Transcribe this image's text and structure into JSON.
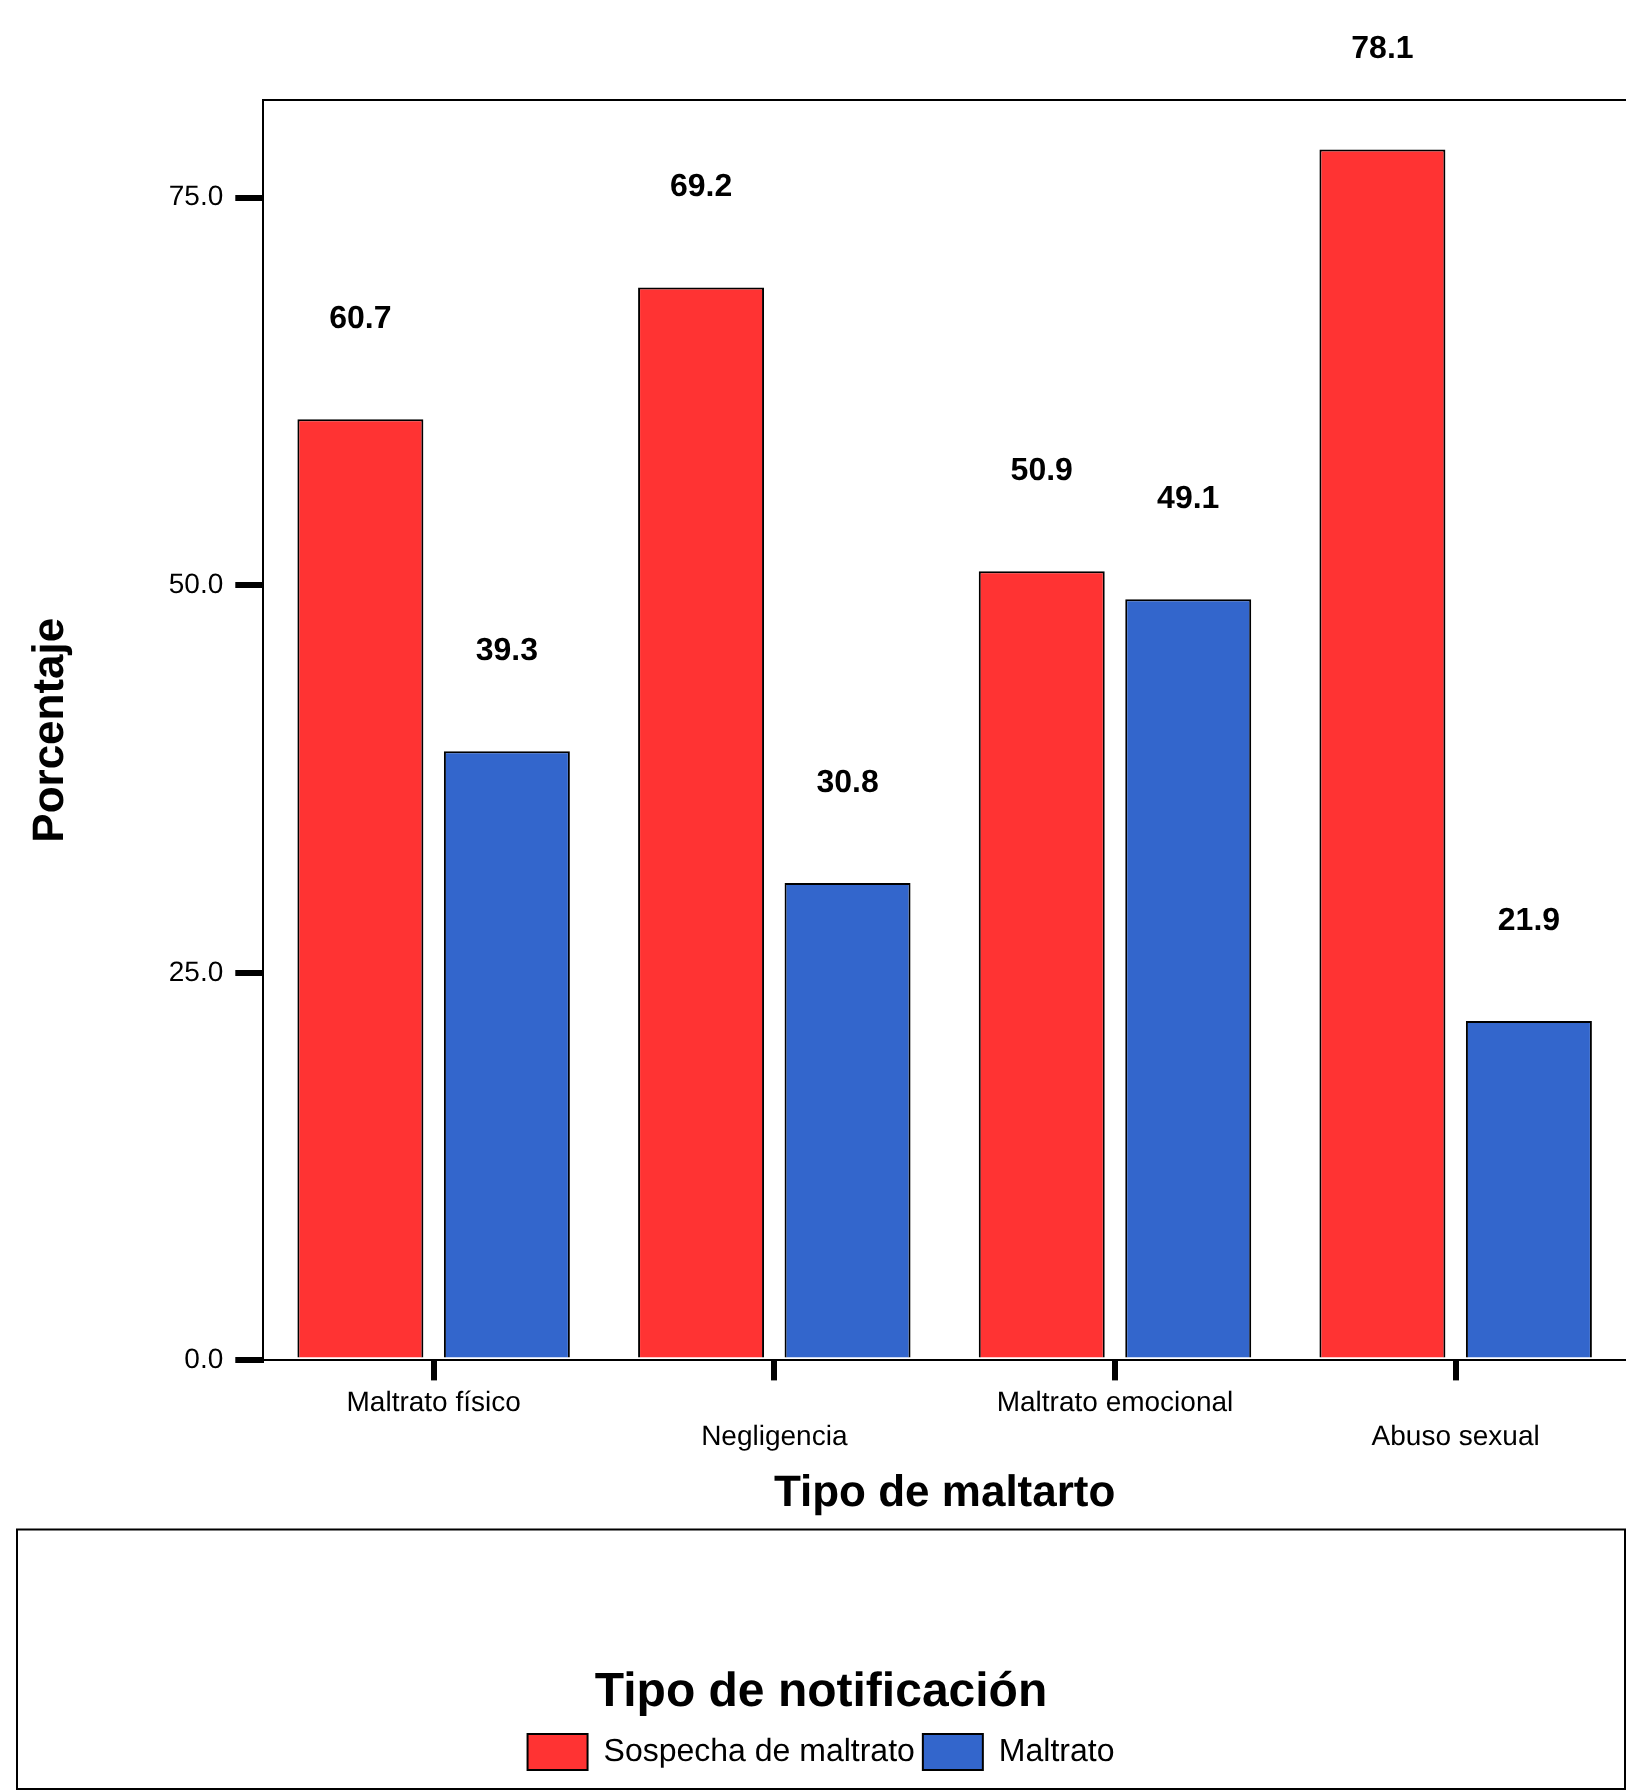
{
  "chart_data": {
    "type": "bar",
    "xlabel": "Tipo de maltarto",
    "ylabel": "Porcentaje",
    "legend_title": "Tipo de notificación",
    "categories": [
      "Maltrato físico",
      "Negligencia",
      "Maltrato emocional",
      "Abuso sexual"
    ],
    "series": [
      {
        "name": "Sospecha de maltrato",
        "color": "#ff3333",
        "values": [
          60.7,
          69.2,
          50.9,
          78.1
        ]
      },
      {
        "name": "Maltrato",
        "color": "#3366cc",
        "values": [
          39.3,
          30.8,
          49.1,
          21.9
        ]
      }
    ],
    "ylim": [
      0,
      81.3
    ],
    "yticks": [
      {
        "value": 0,
        "label": "0.0"
      },
      {
        "value": 25,
        "label": "25.0"
      },
      {
        "value": 50,
        "label": "50.0"
      },
      {
        "value": 75,
        "label": "75.0"
      }
    ],
    "data_labels": true,
    "legend": "bottom"
  }
}
